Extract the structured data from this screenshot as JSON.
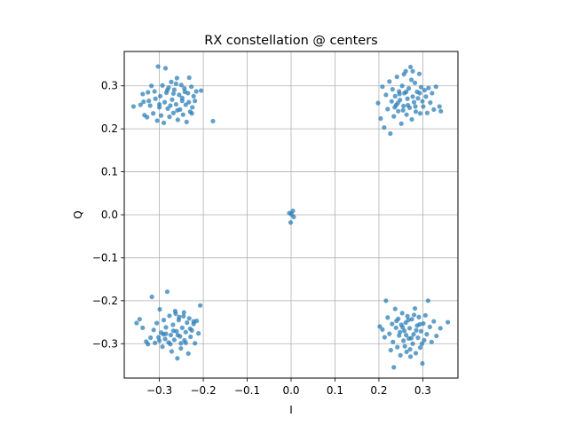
{
  "chart_data": {
    "type": "scatter",
    "title": "RX constellation @ centers",
    "xlabel": "I",
    "ylabel": "Q",
    "xlim": [
      -0.38,
      0.38
    ],
    "ylim": [
      -0.38,
      0.38
    ],
    "xticks": [
      -0.3,
      -0.2,
      -0.1,
      0.0,
      0.1,
      0.2,
      0.3
    ],
    "xtick_labels": [
      "−0.3",
      "−0.2",
      "−0.1",
      "0.0",
      "0.1",
      "0.2",
      "0.3"
    ],
    "yticks": [
      0.3,
      0.2,
      0.1,
      0.0,
      -0.1,
      -0.2,
      -0.3
    ],
    "ytick_labels": [
      "0.3",
      "0.2",
      "0.1",
      "0.0",
      "−0.1",
      "−0.2",
      "−0.3"
    ],
    "grid": true,
    "marker_color": "#1f77b4",
    "series": [
      {
        "points": [
          [
            -0.359,
            0.252
          ],
          [
            -0.343,
            0.256
          ],
          [
            -0.338,
            0.281
          ],
          [
            -0.336,
            0.263
          ],
          [
            -0.334,
            0.232
          ],
          [
            -0.328,
            0.227
          ],
          [
            -0.326,
            0.285
          ],
          [
            -0.324,
            0.265
          ],
          [
            -0.321,
            0.254
          ],
          [
            -0.318,
            0.3
          ],
          [
            -0.314,
            0.236
          ],
          [
            -0.311,
            0.287
          ],
          [
            -0.309,
            0.27
          ],
          [
            -0.305,
            0.219
          ],
          [
            -0.303,
            0.345
          ],
          [
            -0.3,
            0.25
          ],
          [
            -0.298,
            0.276
          ],
          [
            -0.296,
            0.231
          ],
          [
            -0.293,
            0.301
          ],
          [
            -0.29,
            0.214
          ],
          [
            -0.288,
            0.262
          ],
          [
            -0.286,
            0.341
          ],
          [
            -0.284,
            0.284
          ],
          [
            -0.281,
            0.247
          ],
          [
            -0.279,
            0.296
          ],
          [
            -0.277,
            0.228
          ],
          [
            -0.273,
            0.309
          ],
          [
            -0.271,
            0.268
          ],
          [
            -0.268,
            0.237
          ],
          [
            -0.266,
            0.291
          ],
          [
            -0.262,
            0.257
          ],
          [
            -0.26,
            0.318
          ],
          [
            -0.258,
            0.221
          ],
          [
            -0.255,
            0.279
          ],
          [
            -0.253,
            0.245
          ],
          [
            -0.25,
            0.302
          ],
          [
            -0.248,
            0.265
          ],
          [
            -0.246,
            0.233
          ],
          [
            -0.243,
            0.294
          ],
          [
            -0.24,
            0.256
          ],
          [
            -0.238,
            0.216
          ],
          [
            -0.235,
            0.283
          ],
          [
            -0.233,
            0.262
          ],
          [
            -0.23,
            0.24
          ],
          [
            -0.227,
            0.298
          ],
          [
            -0.225,
            0.25
          ],
          [
            -0.222,
            0.276
          ],
          [
            -0.219,
            0.265
          ],
          [
            -0.216,
            0.287
          ],
          [
            -0.205,
            0.289
          ],
          [
            -0.178,
            0.218
          ],
          [
            -0.262,
            0.305
          ],
          [
            -0.282,
            0.29
          ],
          [
            -0.248,
            0.272
          ],
          [
            -0.3,
            0.257
          ],
          [
            -0.268,
            0.282
          ],
          [
            -0.232,
            0.319
          ],
          [
            -0.259,
            0.243
          ],
          [
            -0.275,
            0.254
          ],
          [
            -0.242,
            0.286
          ],
          [
            -0.226,
            0.236
          ]
        ]
      },
      {
        "points": [
          [
            0.198,
            0.26
          ],
          [
            0.204,
            0.224
          ],
          [
            0.208,
            0.298
          ],
          [
            0.212,
            0.203
          ],
          [
            0.216,
            0.279
          ],
          [
            0.22,
            0.246
          ],
          [
            0.224,
            0.31
          ],
          [
            0.226,
            0.189
          ],
          [
            0.229,
            0.264
          ],
          [
            0.231,
            0.292
          ],
          [
            0.234,
            0.229
          ],
          [
            0.237,
            0.276
          ],
          [
            0.239,
            0.255
          ],
          [
            0.241,
            0.321
          ],
          [
            0.244,
            0.241
          ],
          [
            0.246,
            0.287
          ],
          [
            0.248,
            0.267
          ],
          [
            0.251,
            0.212
          ],
          [
            0.253,
            0.3
          ],
          [
            0.256,
            0.253
          ],
          [
            0.258,
            0.283
          ],
          [
            0.261,
            0.334
          ],
          [
            0.263,
            0.233
          ],
          [
            0.265,
            0.27
          ],
          [
            0.268,
            0.294
          ],
          [
            0.27,
            0.249
          ],
          [
            0.272,
            0.344
          ],
          [
            0.275,
            0.222
          ],
          [
            0.277,
            0.275
          ],
          [
            0.28,
            0.262
          ],
          [
            0.282,
            0.307
          ],
          [
            0.284,
            0.24
          ],
          [
            0.287,
            0.286
          ],
          [
            0.289,
            0.271
          ],
          [
            0.292,
            0.328
          ],
          [
            0.294,
            0.236
          ],
          [
            0.296,
            0.297
          ],
          [
            0.299,
            0.264
          ],
          [
            0.301,
            0.252
          ],
          [
            0.304,
            0.29
          ],
          [
            0.307,
            0.275
          ],
          [
            0.31,
            0.237
          ],
          [
            0.313,
            0.295
          ],
          [
            0.317,
            0.261
          ],
          [
            0.321,
            0.283
          ],
          [
            0.325,
            0.245
          ],
          [
            0.33,
            0.298
          ],
          [
            0.338,
            0.252
          ],
          [
            0.341,
            0.241
          ],
          [
            0.257,
            0.327
          ],
          [
            0.266,
            0.255
          ],
          [
            0.247,
            0.281
          ],
          [
            0.277,
            0.334
          ],
          [
            0.255,
            0.243
          ],
          [
            0.243,
            0.26
          ],
          [
            0.283,
            0.252
          ],
          [
            0.293,
            0.283
          ],
          [
            0.262,
            0.286
          ],
          [
            0.236,
            0.25
          ],
          [
            0.274,
            0.314
          ]
        ]
      },
      {
        "points": [
          [
            -0.352,
            -0.252
          ],
          [
            -0.345,
            -0.243
          ],
          [
            -0.338,
            -0.263
          ],
          [
            -0.33,
            -0.295
          ],
          [
            -0.326,
            -0.301
          ],
          [
            -0.32,
            -0.286
          ],
          [
            -0.317,
            -0.191
          ],
          [
            -0.313,
            -0.268
          ],
          [
            -0.31,
            -0.298
          ],
          [
            -0.306,
            -0.252
          ],
          [
            -0.302,
            -0.285
          ],
          [
            -0.299,
            -0.22
          ],
          [
            -0.296,
            -0.274
          ],
          [
            -0.293,
            -0.307
          ],
          [
            -0.29,
            -0.245
          ],
          [
            -0.287,
            -0.289
          ],
          [
            -0.285,
            -0.262
          ],
          [
            -0.282,
            -0.179
          ],
          [
            -0.279,
            -0.297
          ],
          [
            -0.277,
            -0.235
          ],
          [
            -0.274,
            -0.28
          ],
          [
            -0.272,
            -0.318
          ],
          [
            -0.269,
            -0.256
          ],
          [
            -0.266,
            -0.291
          ],
          [
            -0.264,
            -0.224
          ],
          [
            -0.261,
            -0.271
          ],
          [
            -0.259,
            -0.334
          ],
          [
            -0.256,
            -0.245
          ],
          [
            -0.253,
            -0.283
          ],
          [
            -0.251,
            -0.299
          ],
          [
            -0.248,
            -0.263
          ],
          [
            -0.245,
            -0.236
          ],
          [
            -0.243,
            -0.292
          ],
          [
            -0.24,
            -0.273
          ],
          [
            -0.237,
            -0.251
          ],
          [
            -0.234,
            -0.323
          ],
          [
            -0.232,
            -0.241
          ],
          [
            -0.229,
            -0.284
          ],
          [
            -0.226,
            -0.269
          ],
          [
            -0.222,
            -0.254
          ],
          [
            -0.219,
            -0.299
          ],
          [
            -0.215,
            -0.247
          ],
          [
            -0.211,
            -0.276
          ],
          [
            -0.207,
            -0.211
          ],
          [
            -0.285,
            -0.277
          ],
          [
            -0.263,
            -0.23
          ],
          [
            -0.251,
            -0.311
          ],
          [
            -0.275,
            -0.301
          ],
          [
            -0.244,
            -0.227
          ],
          [
            -0.258,
            -0.28
          ],
          [
            -0.24,
            -0.298
          ],
          [
            -0.268,
            -0.27
          ],
          [
            -0.23,
            -0.265
          ],
          [
            -0.291,
            -0.278
          ],
          [
            -0.222,
            -0.248
          ],
          [
            -0.255,
            -0.238
          ],
          [
            -0.3,
            -0.293
          ]
        ]
      },
      {
        "points": [
          [
            0.202,
            -0.26
          ],
          [
            0.208,
            -0.267
          ],
          [
            0.213,
            -0.285
          ],
          [
            0.216,
            -0.2
          ],
          [
            0.22,
            -0.239
          ],
          [
            0.224,
            -0.277
          ],
          [
            0.227,
            -0.315
          ],
          [
            0.23,
            -0.254
          ],
          [
            0.232,
            -0.296
          ],
          [
            0.234,
            -0.355
          ],
          [
            0.237,
            -0.219
          ],
          [
            0.239,
            -0.263
          ],
          [
            0.242,
            -0.308
          ],
          [
            0.244,
            -0.242
          ],
          [
            0.246,
            -0.281
          ],
          [
            0.249,
            -0.327
          ],
          [
            0.251,
            -0.256
          ],
          [
            0.253,
            -0.229
          ],
          [
            0.256,
            -0.293
          ],
          [
            0.258,
            -0.27
          ],
          [
            0.261,
            -0.251
          ],
          [
            0.263,
            -0.319
          ],
          [
            0.265,
            -0.236
          ],
          [
            0.268,
            -0.288
          ],
          [
            0.27,
            -0.264
          ],
          [
            0.272,
            -0.33
          ],
          [
            0.275,
            -0.243
          ],
          [
            0.277,
            -0.3
          ],
          [
            0.279,
            -0.278
          ],
          [
            0.282,
            -0.218
          ],
          [
            0.284,
            -0.322
          ],
          [
            0.287,
            -0.258
          ],
          [
            0.289,
            -0.286
          ],
          [
            0.291,
            -0.238
          ],
          [
            0.294,
            -0.309
          ],
          [
            0.296,
            -0.271
          ],
          [
            0.299,
            -0.346
          ],
          [
            0.301,
            -0.253
          ],
          [
            0.303,
            -0.292
          ],
          [
            0.306,
            -0.234
          ],
          [
            0.309,
            -0.278
          ],
          [
            0.312,
            -0.2
          ],
          [
            0.316,
            -0.261
          ],
          [
            0.32,
            -0.296
          ],
          [
            0.325,
            -0.248
          ],
          [
            0.331,
            -0.282
          ],
          [
            0.34,
            -0.264
          ],
          [
            0.357,
            -0.25
          ],
          [
            0.259,
            -0.306
          ],
          [
            0.267,
            -0.245
          ],
          [
            0.285,
            -0.269
          ],
          [
            0.248,
            -0.273
          ],
          [
            0.293,
            -0.255
          ],
          [
            0.274,
            -0.287
          ],
          [
            0.262,
            -0.28
          ],
          [
            0.298,
            -0.3
          ],
          [
            0.24,
            -0.247
          ],
          [
            0.28,
            -0.233
          ],
          [
            0.254,
            -0.262
          ],
          [
            0.271,
            -0.313
          ]
        ]
      },
      {
        "points": [
          [
            -0.004,
            0.004
          ],
          [
            0.004,
            0.009
          ],
          [
            0.006,
            -0.005
          ],
          [
            -0.001,
            -0.018
          ],
          [
            0.001,
            0.001
          ]
        ]
      }
    ]
  }
}
